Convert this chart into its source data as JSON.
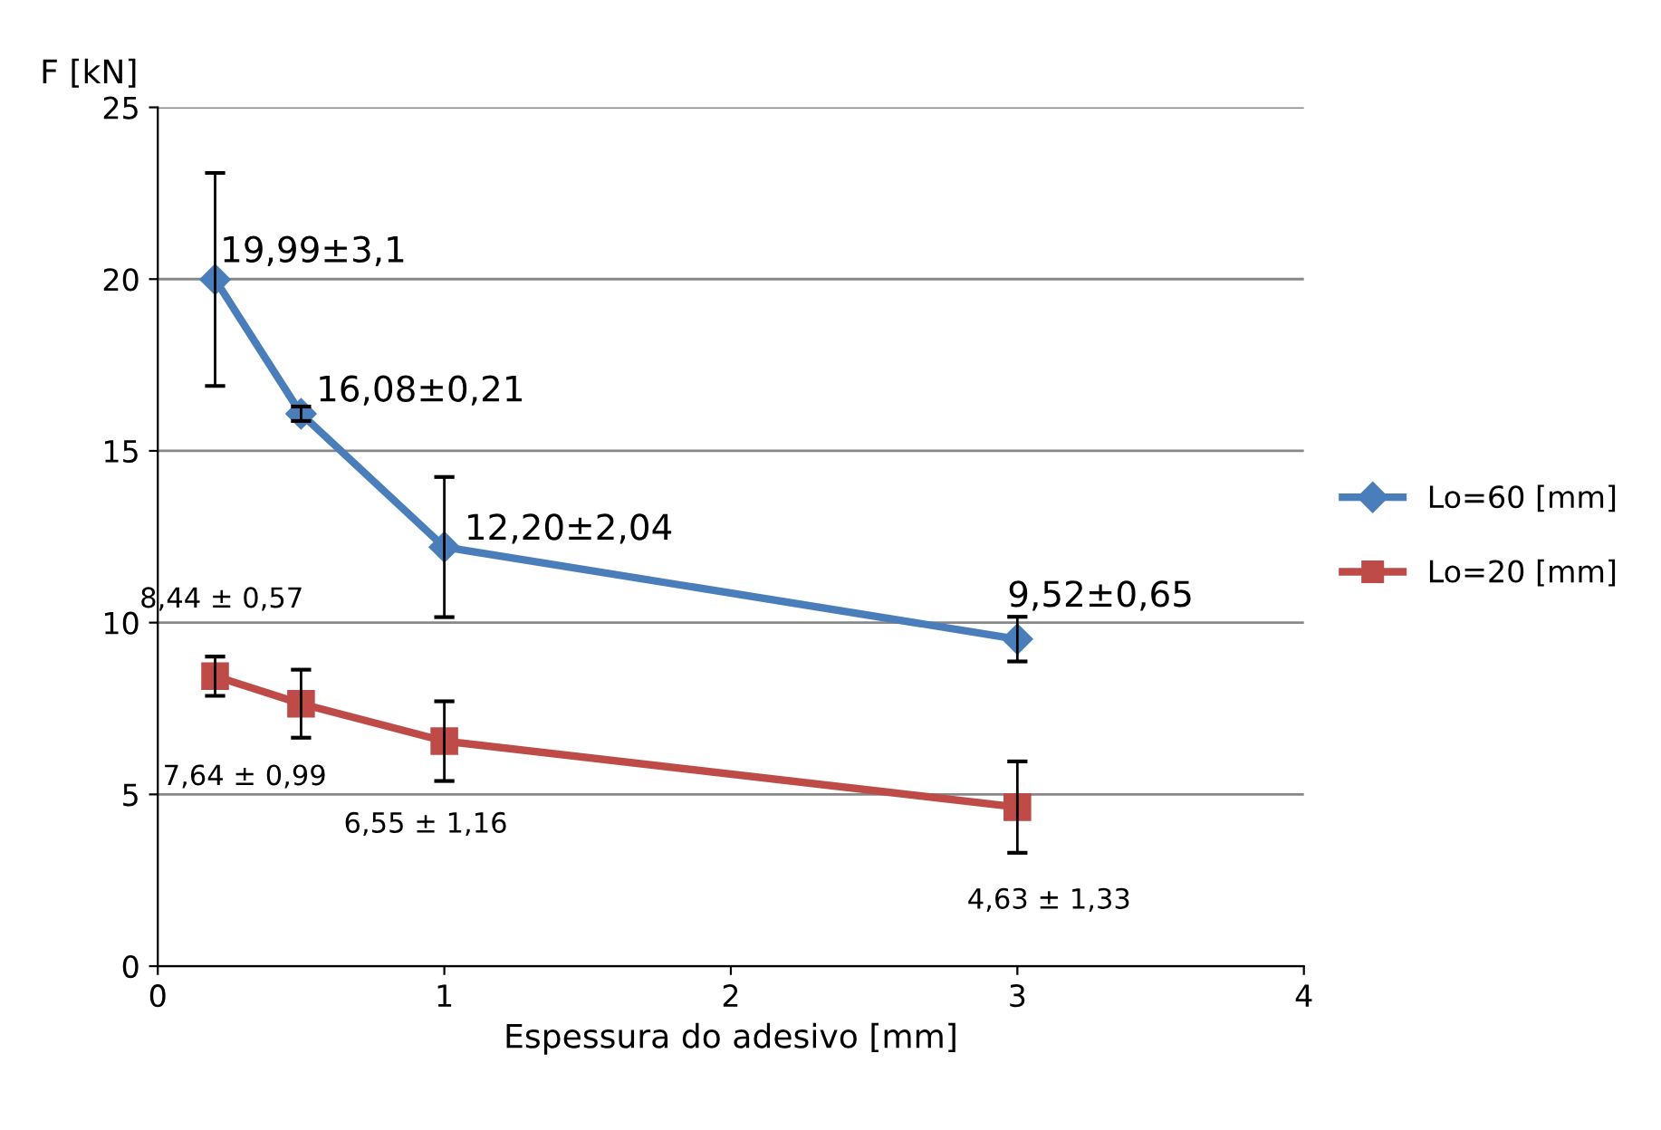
{
  "chart_data": {
    "type": "line",
    "xlabel": "Espessura do adesivo [mm]",
    "ylabel": "F [kN]",
    "x": [
      0.2,
      0.5,
      1,
      3
    ],
    "xlim": [
      0,
      4
    ],
    "xticks": [
      0,
      1,
      2,
      3,
      4
    ],
    "ylim": [
      0,
      25
    ],
    "yticks": [
      0,
      5,
      10,
      15,
      20,
      25
    ],
    "grid": "y",
    "legend": "right",
    "line_style": "solid",
    "series": [
      {
        "name": "Lo=60 [mm]",
        "color": "#4a7ebb",
        "marker": "diamond",
        "values": [
          19.99,
          16.08,
          12.2,
          9.52
        ],
        "errors": [
          3.1,
          0.21,
          2.04,
          0.65
        ],
        "value_labels": [
          "19,99±3,1",
          "16,08±0,21",
          "12,20±2,04",
          "9,52±0,65"
        ]
      },
      {
        "name": "Lo=20 [mm]",
        "color": "#be4b48",
        "marker": "square",
        "values": [
          8.44,
          7.64,
          6.55,
          4.63
        ],
        "errors": [
          0.57,
          0.99,
          1.16,
          1.33
        ],
        "value_labels": [
          "8,44 ± 0,57",
          "7,64 ± 0,99",
          "6,55 ± 1,16",
          "4,63 ± 1,33"
        ]
      }
    ]
  }
}
